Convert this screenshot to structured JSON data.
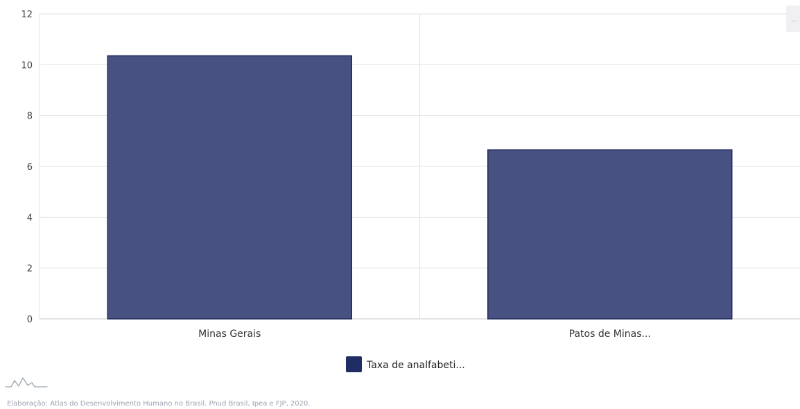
{
  "chart_data": {
    "type": "bar",
    "categories": [
      "Minas Gerais",
      "Patos de Minas..."
    ],
    "series": [
      {
        "name": "Taxa de analfabeti...",
        "values": [
          10.35,
          6.65
        ]
      }
    ],
    "y_ticks": [
      "0",
      "2",
      "4",
      "6",
      "8",
      "10",
      "12"
    ],
    "ylim": [
      0,
      12
    ],
    "grid": true,
    "legend_position": "bottom-center",
    "colors": {
      "bar_fill": "#485282",
      "bar_stroke": "#1f2a5c",
      "legend_swatch": "#1f2d63",
      "grid": "#e3e3e3",
      "axis": "#c8c8c8"
    }
  },
  "menu": {
    "icon": "menu-dots-icon",
    "label": "..."
  },
  "logo": {
    "icon": "atlas-logo-icon"
  },
  "credit": "Elaboração: Atlas do Desenvolvimento Humano no Brasil. Pnud Brasil, Ipea e FJP, 2020."
}
